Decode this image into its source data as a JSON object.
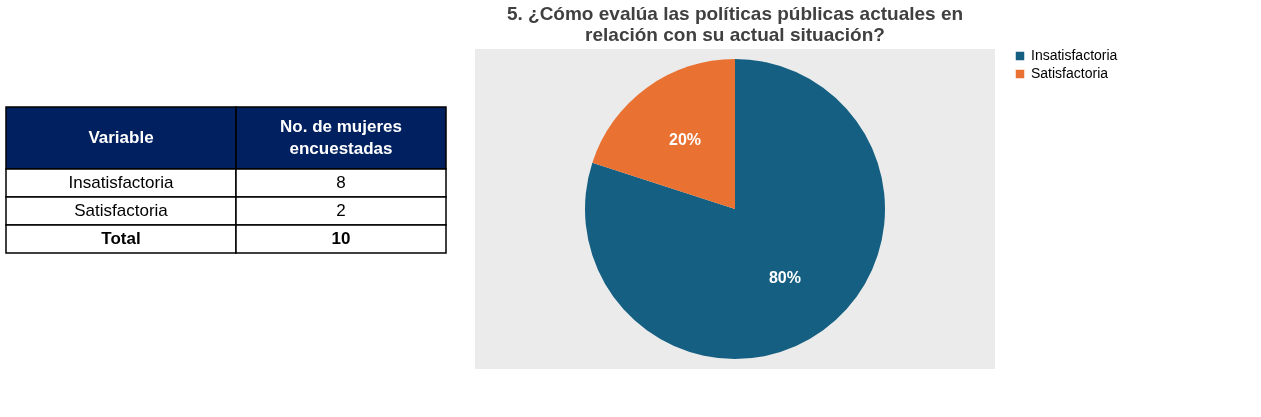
{
  "chart_data": [
    {
      "type": "other",
      "xlabel": "Variable",
      "ylabel": "No. de mujeres encuestadas",
      "categories": [
        "Insatisfactoria",
        "Satisfactoria"
      ],
      "values": [
        8,
        2
      ],
      "data_labels": true,
      "annotations": [
        "Total",
        "10"
      ]
    },
    {
      "type": "pie",
      "title": "5. ¿Cómo evalúa las políticas públicas actuales en relación con su actual situación?",
      "categories": [
        "Insatisfactoria",
        "Satisfactoria"
      ],
      "values": [
        80,
        20
      ],
      "colors": [
        "#156082",
        "#e97132"
      ],
      "value_labels": [
        "80%",
        "20%"
      ],
      "legend": "right"
    }
  ]
}
